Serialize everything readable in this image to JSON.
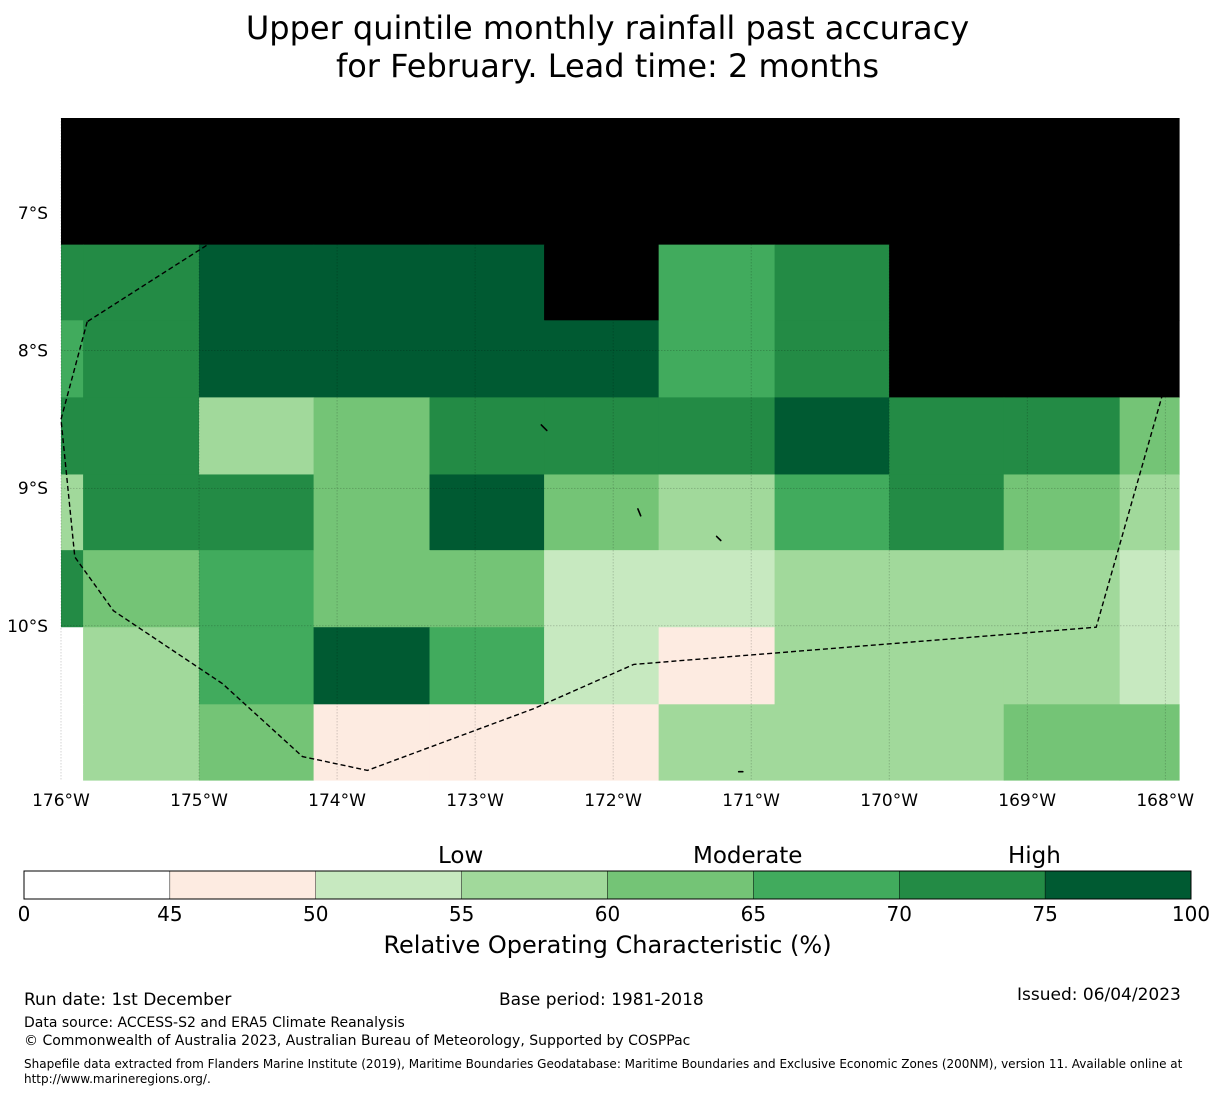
{
  "title": {
    "line1": "Upper quintile monthly rainfall past accuracy",
    "line2": "for February. Lead time: 2 months"
  },
  "map": {
    "lat_labels": [
      "7°S",
      "8°S",
      "9°S",
      "10°S"
    ],
    "lon_labels": [
      "176°W",
      "175°W",
      "174°W",
      "173°W",
      "172°W",
      "171°W",
      "170°W",
      "169°W",
      "168°W"
    ],
    "lat_values": [
      -7,
      -8,
      -9,
      -10
    ],
    "lon_values": [
      -176,
      -175,
      -174,
      -173,
      -172,
      -171,
      -170,
      -169,
      -168
    ],
    "extent": {
      "lon_min": -176,
      "lon_max": -167.9,
      "lat_top": -6.31,
      "lat_bottom": -11.12
    },
    "row_edges_lat": [
      -6.31,
      -7.23,
      -7.78,
      -8.34,
      -8.9,
      -9.45,
      -10.01,
      -10.57,
      -11.12
    ],
    "col_edges_lon": [
      -176,
      -175.84,
      -175.0,
      -174.17,
      -173.33,
      -172.5,
      -171.67,
      -170.83,
      -170.0,
      -169.17,
      -168.33,
      -167.9
    ],
    "grid_classes": [
      [
        8,
        8,
        8,
        8,
        8,
        8,
        8,
        8,
        8,
        8,
        8
      ],
      [
        6,
        6,
        7,
        7,
        7,
        8,
        5,
        6,
        8,
        8,
        8
      ],
      [
        5,
        6,
        7,
        7,
        7,
        7,
        5,
        6,
        8,
        8,
        8
      ],
      [
        6,
        6,
        3,
        4,
        6,
        6,
        6,
        7,
        6,
        6,
        4
      ],
      [
        3,
        6,
        6,
        4,
        7,
        4,
        3,
        5,
        6,
        4,
        3
      ],
      [
        6,
        4,
        5,
        4,
        4,
        2,
        2,
        3,
        3,
        3,
        2
      ],
      [
        0,
        3,
        5,
        7,
        5,
        2,
        1,
        3,
        3,
        3,
        2
      ],
      [
        0,
        3,
        4,
        1,
        1,
        1,
        3,
        3,
        3,
        4,
        4
      ]
    ],
    "boundary_name": "Tokelau EEZ (200NM)",
    "boundary": [
      [
        -175.81,
        -7.79
      ],
      [
        -176.0,
        -8.5
      ],
      [
        -175.9,
        -9.5
      ],
      [
        -175.62,
        -9.89
      ],
      [
        -174.83,
        -10.42
      ],
      [
        -174.25,
        -10.95
      ],
      [
        -173.78,
        -11.05
      ],
      [
        -172.57,
        -10.6
      ],
      [
        -171.85,
        -10.28
      ],
      [
        -168.5,
        -10.01
      ],
      [
        -168.0,
        -8.25
      ],
      [
        -168.5,
        -7.45
      ],
      [
        -168.9,
        -6.88
      ],
      [
        -170.55,
        -6.9
      ],
      [
        -171.6,
        -6.6
      ],
      [
        -173.25,
        -6.48
      ],
      [
        -174.5,
        -6.95
      ],
      [
        -175.81,
        -7.79
      ]
    ],
    "islands": [
      {
        "name": "Atafu",
        "points": [
          [
            -172.52,
            -8.54
          ],
          [
            -172.48,
            -8.58
          ]
        ]
      },
      {
        "name": "Nukunonu",
        "points": [
          [
            -171.82,
            -9.15
          ],
          [
            -171.8,
            -9.2
          ]
        ]
      },
      {
        "name": "Fakaofo",
        "points": [
          [
            -171.25,
            -9.35
          ],
          [
            -171.22,
            -9.38
          ]
        ]
      },
      {
        "name": "Swains",
        "points": [
          [
            -171.09,
            -11.06
          ],
          [
            -171.06,
            -11.06
          ]
        ]
      }
    ]
  },
  "colorbar": {
    "classes": [
      {
        "from": 0,
        "to": 45,
        "color": "#ffffff"
      },
      {
        "from": 45,
        "to": 50,
        "color": "#fdebe1"
      },
      {
        "from": 50,
        "to": 55,
        "color": "#c7e9c0"
      },
      {
        "from": 55,
        "to": 60,
        "color": "#a1d99b"
      },
      {
        "from": 60,
        "to": 65,
        "color": "#74c476"
      },
      {
        "from": 65,
        "to": 70,
        "color": "#41ab5d"
      },
      {
        "from": 70,
        "to": 75,
        "color": "#238b45"
      },
      {
        "from": 75,
        "to": 100,
        "color": "#005a32"
      }
    ],
    "ticks": [
      "0",
      "45",
      "50",
      "55",
      "60",
      "65",
      "70",
      "75",
      "100"
    ],
    "category_labels": {
      "low": "Low",
      "moderate": "Moderate",
      "high": "High"
    },
    "axis_label": "Relative Operating Characteristic (%)"
  },
  "footer": {
    "run_date": "Run date: 1st December",
    "base_period": "Base period: 1981-2018",
    "issued": "Issued: 06/04/2023",
    "data_source": "Data source: ACCESS-S2 and ERA5 Climate Reanalysis",
    "copyright": "© Commonwealth of Australia 2023, Australian Bureau of Meteorology, Supported by COSPPac",
    "shapefile": "Shapefile data extracted from Flanders Marine Institute (2019), Maritime Boundaries Geodatabase: Maritime Boundaries and Exclusive Economic Zones (200NM), version 11. Available online at http://www.marineregions.org/."
  }
}
